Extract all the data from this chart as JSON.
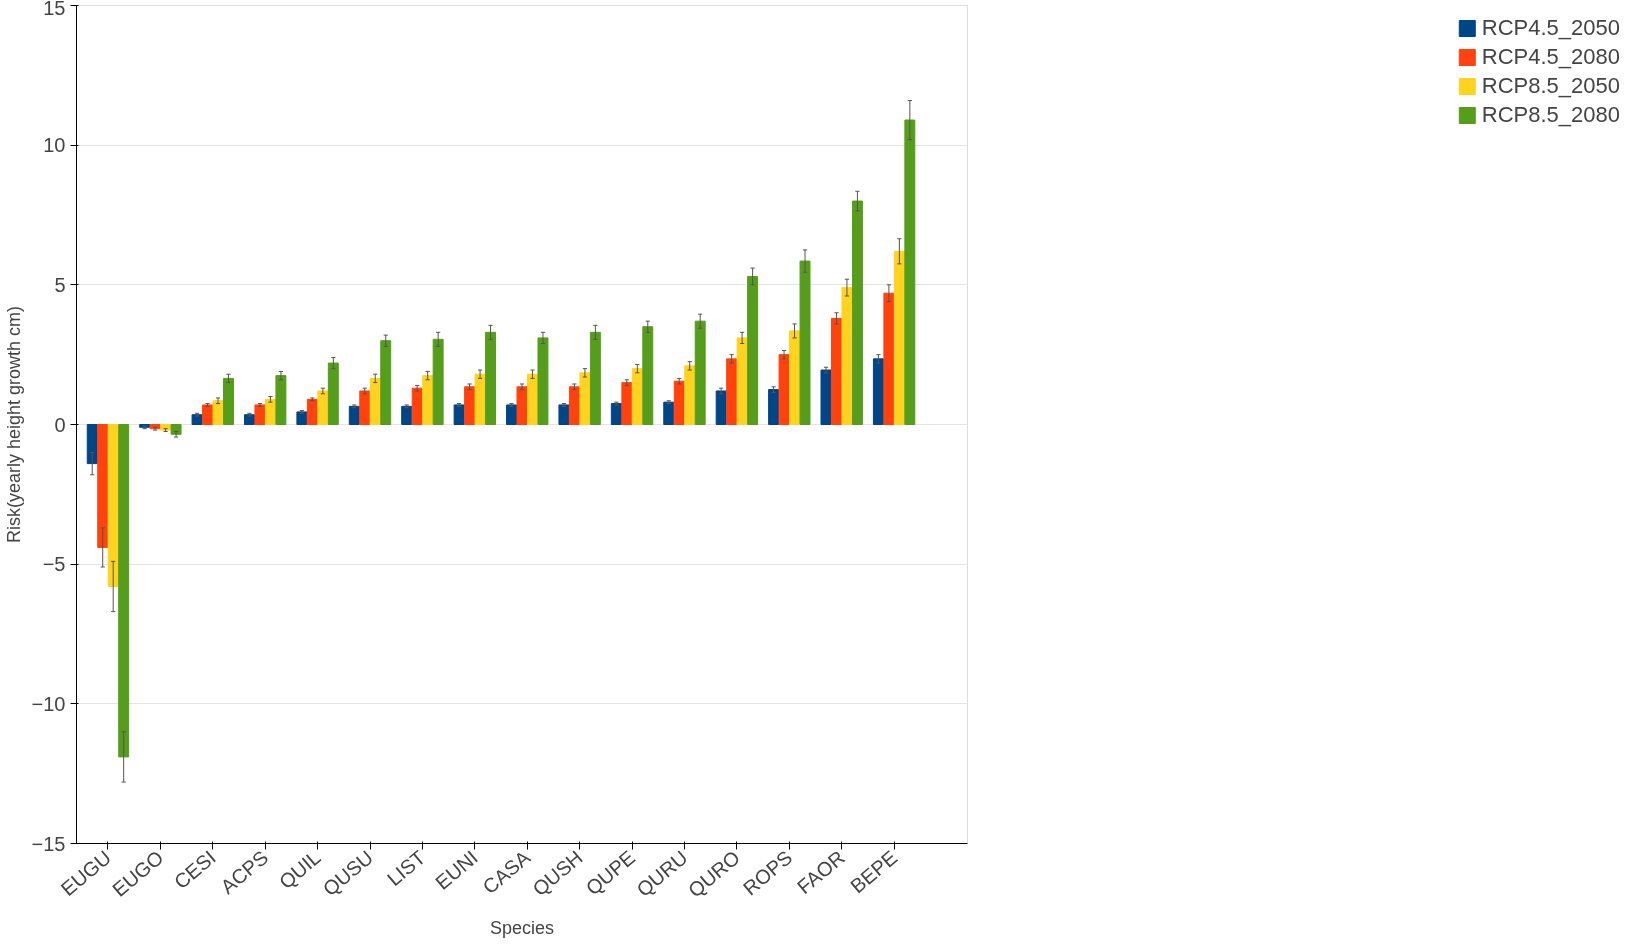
{
  "chart_data": {
    "type": "bar",
    "xlabel": "Species",
    "ylabel": "Risk(yearly height growth cm)",
    "categories": [
      "EUGU",
      "EUGO",
      "CESI",
      "ACPS",
      "QUIL",
      "QUSU",
      "LIST",
      "EUNI",
      "CASA",
      "QUSH",
      "QUPE",
      "QURU",
      "QURO",
      "ROPS",
      "FAOR",
      "BEPE"
    ],
    "series": [
      {
        "name": "RCP4.5_2050",
        "color": "#004586",
        "values": [
          -1.4,
          -0.1,
          0.35,
          0.35,
          0.45,
          0.65,
          0.65,
          0.7,
          0.7,
          0.7,
          0.75,
          0.8,
          1.2,
          1.25,
          1.95,
          2.35
        ],
        "errors": [
          0.4,
          0.05,
          0.05,
          0.05,
          0.05,
          0.05,
          0.05,
          0.05,
          0.05,
          0.05,
          0.05,
          0.05,
          0.1,
          0.1,
          0.1,
          0.15
        ]
      },
      {
        "name": "RCP4.5_2080",
        "color": "#ff420e",
        "values": [
          -4.4,
          -0.15,
          0.7,
          0.7,
          0.9,
          1.2,
          1.3,
          1.35,
          1.35,
          1.35,
          1.5,
          1.55,
          2.35,
          2.5,
          3.8,
          4.7
        ],
        "errors": [
          0.7,
          0.05,
          0.05,
          0.05,
          0.05,
          0.1,
          0.1,
          0.1,
          0.1,
          0.1,
          0.1,
          0.1,
          0.15,
          0.15,
          0.2,
          0.3
        ]
      },
      {
        "name": "RCP8.5_2050",
        "color": "#ffd320",
        "values": [
          -5.8,
          -0.2,
          0.85,
          0.9,
          1.2,
          1.65,
          1.75,
          1.8,
          1.8,
          1.85,
          2.0,
          2.1,
          3.1,
          3.35,
          4.9,
          6.2
        ],
        "errors": [
          0.9,
          0.05,
          0.1,
          0.1,
          0.1,
          0.15,
          0.15,
          0.15,
          0.15,
          0.15,
          0.15,
          0.15,
          0.2,
          0.25,
          0.3,
          0.45
        ]
      },
      {
        "name": "RCP8.5_2080",
        "color": "#579d1c",
        "values": [
          -11.9,
          -0.35,
          1.65,
          1.75,
          2.2,
          3.0,
          3.05,
          3.3,
          3.1,
          3.3,
          3.5,
          3.7,
          5.3,
          5.85,
          8.0,
          10.9
        ],
        "errors": [
          0.9,
          0.1,
          0.15,
          0.15,
          0.2,
          0.2,
          0.25,
          0.25,
          0.2,
          0.25,
          0.2,
          0.25,
          0.3,
          0.4,
          0.35,
          0.7
        ]
      }
    ],
    "ylim": [
      -15,
      15
    ],
    "yticks": [
      -15,
      -10,
      -5,
      0,
      5,
      10,
      15
    ],
    "grid": "y",
    "legend": "right"
  }
}
